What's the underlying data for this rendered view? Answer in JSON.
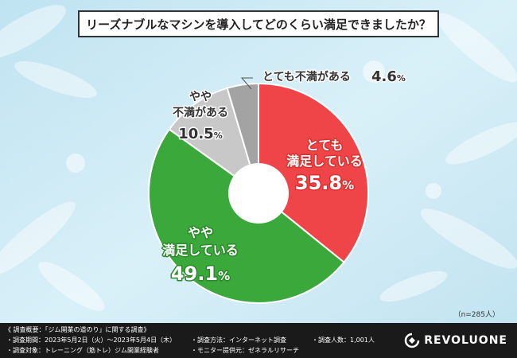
{
  "title": "リーズナブルなマシンを導入してどのくらい満足できましたか？",
  "sample_size": "（n=285人）",
  "colors": {
    "very_satisfied": "#ef4548",
    "somewhat_satisfied": "#3aa83a",
    "somewhat_dissatisfied": "#c8c8c8",
    "very_dissatisfied": "#a3a3a3"
  },
  "chart_data": {
    "type": "pie",
    "donut": true,
    "start": "top (12 o'clock)",
    "direction": "clockwise",
    "slices": [
      {
        "label": "とても満足している",
        "value": 35.8,
        "color": "#ef4548"
      },
      {
        "label": "やや満足している",
        "value": 49.1,
        "color": "#3aa83a"
      },
      {
        "label": "やや不満がある",
        "value": 10.5,
        "color": "#c8c8c8"
      },
      {
        "label": "とても不満がある",
        "value": 4.6,
        "color": "#a3a3a3"
      }
    ]
  },
  "labels": {
    "very_satisfied": {
      "line1": "とても",
      "line2": "満足している",
      "value": "35.8",
      "unit": "%"
    },
    "somewhat_satisfied": {
      "line1": "やや",
      "line2": "満足している",
      "value": "49.1",
      "unit": "%"
    },
    "somewhat_dissatisfied": {
      "line1": "やや",
      "line2": "不満がある",
      "value": "10.5",
      "unit": "%"
    },
    "very_dissatisfied": {
      "text": "とても不満がある",
      "value": "4.6",
      "unit": "%"
    }
  },
  "footer": {
    "overview": "《 調査概要：「ジム開業の道のり」に関する調査》",
    "period": "・調査期間：2023年5月2日（火）～2023年5月4日（木）",
    "target": "・調査対象：トレーニング（筋トレ）ジム開業経験者",
    "method": "・調査方法：インターネット調査",
    "provider": "・モニター提供元：ゼネラルリサーチ",
    "count": "・調査人数：1,001人",
    "logo": "REVOLUONE"
  }
}
